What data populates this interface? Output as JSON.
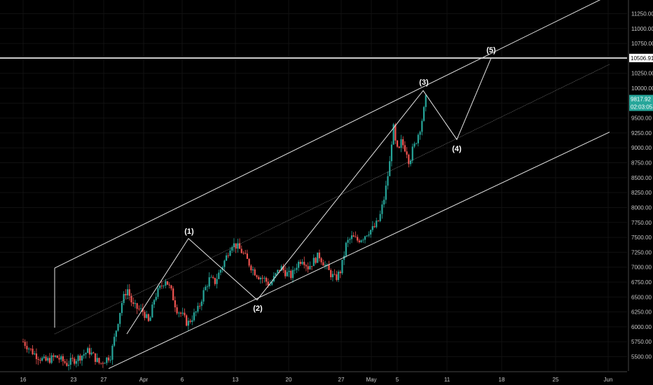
{
  "chart_data": {
    "type": "candlestick",
    "y_range": [
      5300,
      11500
    ],
    "y_ticks": [
      "11250.00",
      "11000.00",
      "10750.00",
      "10500.00",
      "10250.00",
      "10000.00",
      "9750.00",
      "9500.00",
      "9250.00",
      "9000.00",
      "8750.00",
      "8500.00",
      "8250.00",
      "8000.00",
      "7750.00",
      "7500.00",
      "7250.00",
      "7000.00",
      "6750.00",
      "6500.00",
      "6250.00",
      "6000.00",
      "5750.00",
      "5500.00"
    ],
    "x_ticks": [
      "16",
      "23",
      "27",
      "Apr",
      "6",
      "13",
      "20",
      "27",
      "May",
      "5",
      "11",
      "18",
      "25",
      "Jun"
    ],
    "horizontal_line_value": 10506.91,
    "price_badges": {
      "level": "10506.91",
      "last_price": "9817.92",
      "countdown": "02:03:05"
    },
    "wave_labels": [
      "(1)",
      "(2)",
      "(3)",
      "(4)",
      "(5)"
    ],
    "wave_points": [
      {
        "label": "start",
        "price": 5880
      },
      {
        "label": "(1)",
        "price": 7480
      },
      {
        "label": "(2)",
        "price": 6450
      },
      {
        "label": "(3)",
        "price": 9960
      },
      {
        "label": "(4)",
        "price": 9140
      },
      {
        "label": "(5)",
        "price": 10506.91
      }
    ],
    "colors": {
      "up": "#26a69a",
      "down": "#ef5350",
      "lines": "#e6e6e6",
      "badge_green": "#26a69a",
      "badge_level": "#ffffff"
    }
  }
}
